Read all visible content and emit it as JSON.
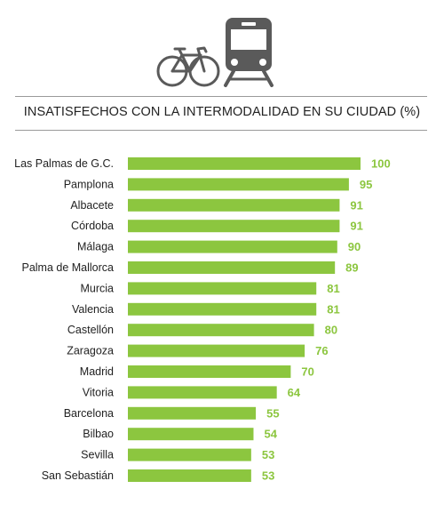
{
  "icons": {
    "bicycle": "bicycle-icon",
    "train": "train-icon"
  },
  "colors": {
    "bar": "#8cc63f",
    "value_label": "#8cc63f",
    "icon": "#5a5a5a",
    "rule": "#9a9a9a"
  },
  "chart_data": {
    "type": "bar",
    "orientation": "horizontal",
    "title": "INSATISFECHOS CON LA INTERMODALIDAD EN SU CIUDAD (%)",
    "categories": [
      "Las Palmas de G.C.",
      "Pamplona",
      "Albacete",
      "Córdoba",
      "Málaga",
      "Palma de Mallorca",
      "Murcia",
      "Valencia",
      "Castellón",
      "Zaragoza",
      "Madrid",
      "Vitoria",
      "Barcelona",
      "Bilbao",
      "Sevilla",
      "San Sebastián"
    ],
    "values": [
      100,
      95,
      91,
      91,
      90,
      89,
      81,
      81,
      80,
      76,
      70,
      64,
      55,
      54,
      53,
      53
    ],
    "xlim": [
      0,
      100
    ],
    "grid": false,
    "legend": "none",
    "xlabel": "",
    "ylabel": ""
  }
}
